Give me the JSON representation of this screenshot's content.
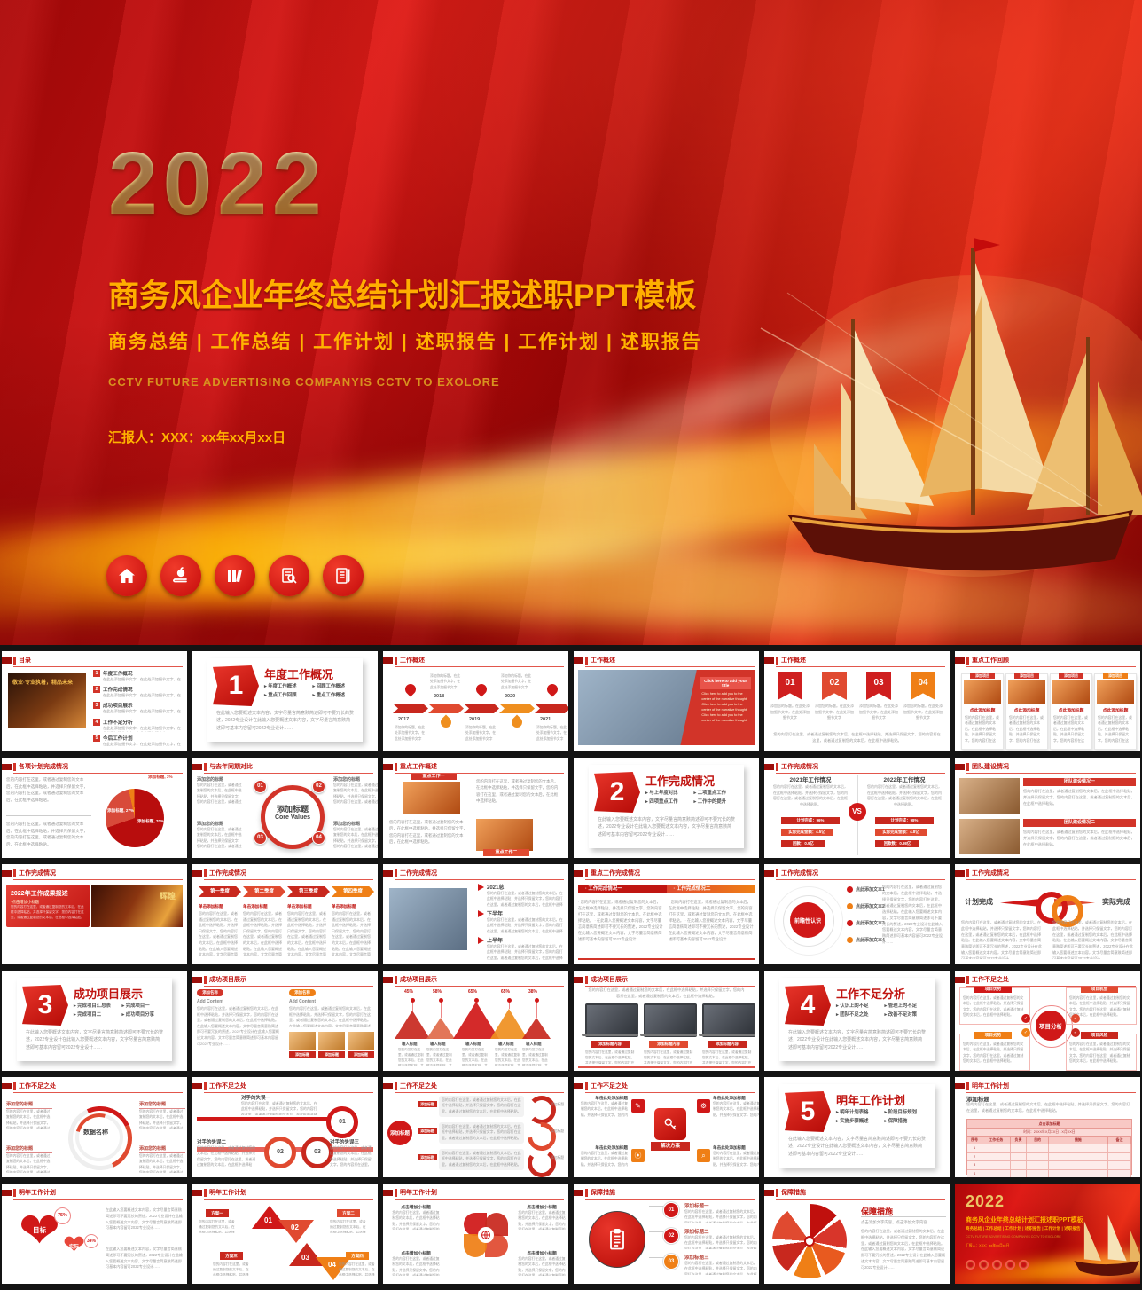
{
  "hero": {
    "year": "2022",
    "title": "商务风企业年终总结计划汇报述职PPT模板",
    "subtitle": "商务总结 | 工作总结 | 工作计划 | 述职报告 | 工作计划 | 述职报告",
    "english_line": "CCTV FUTURE ADVERTISING COMPANYIS CCTV TO EXOLORE",
    "presenter_line": "汇报人：XXX：xx年xx月xx日",
    "icon_names": [
      "home-icon",
      "apple-book-icon",
      "books-icon",
      "doc-magnifier-icon",
      "notebook-pen-icon"
    ],
    "colors": {
      "red": "#c40b0b",
      "gold": "#ecc566",
      "orange_title": "#ffae00"
    }
  },
  "common": {
    "body": "您的内容打在这里，或者通过复制您的文本后，在此框中选择粘贴，并选择只保留文字，您的内容打在这里，或者通过复制您的文本后，在此框中选择粘贴。",
    "body2": "在此输入您要概述文本内容，文字尽量言简意赅简述即可不要冗长的赘述，2022专业设计在此输入您要概述文本内容，文字尽量言简意赅简述即可基本内容留可2022专业设计……",
    "short": "在此处添加细节文字，在此处添加细节文字",
    "add_title": "添加标题",
    "toc_photo_caption": "敬业·专业执着，精品未来",
    "click_add": "点击添加标题"
  },
  "slides": [
    {
      "type": "toc",
      "title": "目录",
      "items": [
        {
          "n": "1",
          "t": "年度工作概况"
        },
        {
          "n": "2",
          "t": "工作完成情况"
        },
        {
          "n": "3",
          "t": "成功项目展示"
        },
        {
          "n": "4",
          "t": "工作不足分析"
        },
        {
          "n": "5",
          "t": "今后工作计划"
        }
      ]
    },
    {
      "type": "divider",
      "num": "1",
      "t": "年度工作概况",
      "bullets": [
        "年度工作概述",
        "回顾工作概述",
        "重点工作回顾",
        "重点工作概述"
      ]
    },
    {
      "type": "timeline",
      "title": "工作概述",
      "years": [
        "2017",
        "2018",
        "2019",
        "2020",
        "2021"
      ],
      "pin_label": "添加你的标题"
    },
    {
      "type": "photoBanner",
      "title": "工作概述",
      "banner": "Click here to add your title",
      "body_en": "Click here to add you to the center of the narrative thought. Click here to add you to the center of the narrative thought. Click here to add you to the center of the narrative thought."
    },
    {
      "type": "ribbons",
      "title": "工作概述",
      "nums": [
        "01",
        "02",
        "03",
        "04"
      ],
      "label": "添加您的标题"
    },
    {
      "type": "cards",
      "title": "重点工作回顾",
      "tag": "添加项目",
      "card_title": "点此添加标题"
    },
    {
      "type": "pie",
      "title": "各项计划完成情况",
      "slices": [
        {
          "label": "添加标题",
          "pct": 70
        },
        {
          "label": "添加标题",
          "pct": 27
        },
        {
          "label": "添加标题",
          "pct": 3
        }
      ]
    },
    {
      "type": "core",
      "title": "与去年同期对比",
      "center": "添加标题",
      "center_en": "Core Values",
      "nums": [
        "01",
        "02",
        "03",
        "04"
      ],
      "corner": "添加您的标题"
    },
    {
      "type": "photos2",
      "title": "重点工作概述",
      "labels": [
        "重点工作一",
        "重点工作二"
      ],
      "nums": [
        "1",
        "2"
      ]
    },
    {
      "type": "divider",
      "num": "2",
      "t": "工作完成情况",
      "bullets": [
        "与上年度对比",
        "二项重点工作",
        "四项重点工作",
        "工作中的提升"
      ]
    },
    {
      "type": "vs",
      "title": "工作完成情况",
      "left": "2021年工作情况",
      "right": "2022年工作情况",
      "vs": "VS",
      "left_bars": [
        "计划完成：96%",
        "实际完成金额：4.5亿",
        "回款：0.9亿"
      ],
      "right_bars": [
        "计划完成：98%",
        "实际完成金额：4.8亿",
        "回款数：0.98亿"
      ]
    },
    {
      "type": "teamRows",
      "title": "团队建设情况",
      "banners": [
        "团队建设情况一",
        "团队建设情况二"
      ]
    },
    {
      "type": "banner13",
      "title": "工作完成情况",
      "panel_title": "2022年工作成果报述",
      "panel_sub": "点击增加小标题",
      "photo_word": "辉煌"
    },
    {
      "type": "chevrons",
      "title": "工作完成情况",
      "items": [
        "第一季度",
        "第二季度",
        "第三季度",
        "第四季度"
      ],
      "sub": "单击添加标题"
    },
    {
      "type": "photoList",
      "title": "工作完成情况",
      "items": [
        "2021总",
        "下半年",
        "上半年"
      ]
    },
    {
      "type": "twoCols",
      "title": "重点工作完成情况",
      "cols": [
        "工作完成情况一",
        "工作完成情况二"
      ]
    },
    {
      "type": "radial",
      "title": "工作完成情况",
      "center": "前瞻性认识",
      "items": [
        "点此添加文本1",
        "点此添加文本2",
        "点此添加文本3",
        "点此添加文本4"
      ]
    },
    {
      "type": "arrows18",
      "title": "工作完成情况",
      "left": "计划完成",
      "right": "实际完成"
    },
    {
      "type": "divider",
      "num": "3",
      "t": "成功项目展示",
      "bullets": [
        "完成项目汇总表",
        "完成项目一",
        "完成项目二",
        "成功项目分享"
      ]
    },
    {
      "type": "addContent",
      "title": "成功项目展示",
      "tag": "添加名称",
      "sub": "Add Content"
    },
    {
      "type": "triangles",
      "title": "成功项目展示",
      "pcts": [
        "45%",
        "58%",
        "65%",
        "65%",
        "38%"
      ],
      "label": "输入标题"
    },
    {
      "type": "laptops",
      "title": "成功项目展示",
      "tag": "添加标题内容"
    },
    {
      "type": "divider",
      "num": "4",
      "t": "工作不足分析",
      "bullets": [
        "认识上的不足",
        "管理上的不足",
        "团队不足之处",
        "改善不足对策"
      ]
    },
    {
      "type": "swot",
      "title": "工作不足之处",
      "center": "项目分析",
      "tabs": [
        "项目优势",
        "项目机会",
        "项目劣势",
        "项目风险"
      ]
    },
    {
      "type": "spiral",
      "title": "工作不足之处",
      "center": "数据名称",
      "corner": "添加您的标题"
    },
    {
      "type": "mistakes",
      "title": "工作不足之处",
      "items": [
        "对手的失误一",
        "对手的失误二",
        "对手的失误三"
      ],
      "nums": [
        "01",
        "02",
        "03"
      ]
    },
    {
      "type": "flow",
      "title": "工作不足之处",
      "center": "添加标题",
      "tag": "添加标题"
    },
    {
      "type": "solution",
      "title": "工作不足之处",
      "center": "解决方案",
      "corner": "单击此处添加标题"
    },
    {
      "type": "divider",
      "num": "5",
      "t": "明年工作计划",
      "bullets": [
        "明年计划表格",
        "阶段目标规划",
        "实施步骤概述",
        "保障措施"
      ]
    },
    {
      "type": "table30",
      "title": "明年工作计划",
      "head": "添加标题",
      "table_title": "点击添加标题",
      "table_sub": "时间：20XX年X月XX日 - X月XX日",
      "cols": [
        "序号",
        "工作任务",
        "负责",
        "目的",
        "措施",
        "备注"
      ],
      "rows": [
        "1",
        "2",
        "3",
        "4",
        "5"
      ]
    },
    {
      "type": "hearts",
      "title": "明年工作计划",
      "items": [
        {
          "label": "目标",
          "pct": "75%"
        },
        {
          "label": "实际",
          "pct": "34%"
        }
      ]
    },
    {
      "type": "pyramid",
      "title": "明年工作计划",
      "nums": [
        "01",
        "02",
        "03",
        "04"
      ],
      "tags": [
        "方案一",
        "方案二",
        "方案三",
        "方案四"
      ]
    },
    {
      "type": "pinwheel",
      "title": "明年工作计划",
      "corner": "点击增加小标题"
    },
    {
      "type": "clipboard",
      "title": "保障措施",
      "nums": [
        "01",
        "02",
        "03"
      ],
      "items": [
        "添加标题一",
        "添加标题二",
        "添加标题三"
      ]
    },
    {
      "type": "fan",
      "title": "保障措施",
      "head": "保障措施",
      "sub": "点击添加文字内容，点击添加文字内容"
    },
    {
      "type": "coverMini",
      "year": "2022",
      "t": "商务风企业年终总结计划汇报述职PPT模板",
      "sub": "商务总结 | 工作总结 | 工作计划 | 述职报告 | 工作计划 | 述职报告",
      "eng": "CCTV FUTURE ADVERTISING COMPANYIS CCTV TO EXOLORE",
      "rep": "汇报人：XXX：xx年xx月xx日"
    }
  ]
}
